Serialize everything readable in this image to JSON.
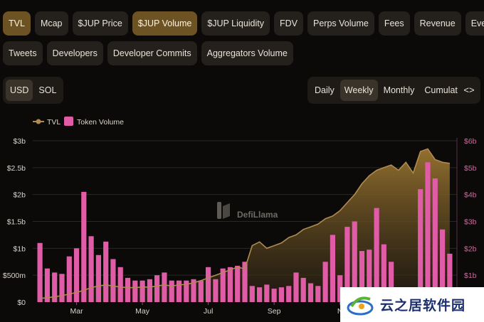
{
  "tabs_row1": [
    {
      "label": "TVL",
      "active": true
    },
    {
      "label": "Mcap",
      "active": false
    },
    {
      "label": "$JUP Price",
      "active": false
    },
    {
      "label": "$JUP Volume",
      "active": true
    },
    {
      "label": "$JUP Liquidity",
      "active": false
    },
    {
      "label": "FDV",
      "active": false
    },
    {
      "label": "Perps Volume",
      "active": false
    },
    {
      "label": "Fees",
      "active": false
    },
    {
      "label": "Revenue",
      "active": false
    },
    {
      "label": "Events",
      "active": false
    }
  ],
  "tabs_row2": [
    {
      "label": "Tweets",
      "active": false
    },
    {
      "label": "Developers",
      "active": false
    },
    {
      "label": "Developer Commits",
      "active": false
    },
    {
      "label": "Aggregators Volume",
      "active": false
    }
  ],
  "currency": {
    "options": [
      "USD",
      "SOL"
    ],
    "selected": "USD"
  },
  "granularity": {
    "options": [
      "Daily",
      "Weekly",
      "Monthly",
      "Cumulative"
    ],
    "selected": "Weekly"
  },
  "embed_button": {
    "label": "<>"
  },
  "watermark": "DefiLlama",
  "brand": {
    "text": "云之居软件园"
  },
  "colors": {
    "tvl": "#b08a52",
    "volume": "#e05ca6",
    "active_tab": "#6d5224"
  },
  "chart_data": {
    "type": "bar",
    "legend": [
      "TVL",
      "Token Volume"
    ],
    "x_tick_labels": [
      "Mar",
      "May",
      "Jul",
      "Sep",
      "N"
    ],
    "x_tick_index": [
      5,
      14,
      23,
      32,
      41
    ],
    "y_left": {
      "ticks": [
        "$0",
        "$500m",
        "$1b",
        "$1.5b",
        "$2b",
        "$2.5b",
        "$3b"
      ],
      "ylim": [
        0,
        3000000000
      ]
    },
    "y_right": {
      "ticks": [
        "$1b",
        "$2b",
        "$3b",
        "$4b",
        "$5b",
        "$6b"
      ],
      "ylim": [
        0,
        6000000000
      ]
    },
    "series": [
      {
        "name": "Token Volume",
        "type": "bar",
        "axis": "right",
        "values": [
          2.2,
          1.25,
          1.1,
          1.05,
          1.7,
          2.0,
          4.1,
          2.45,
          1.75,
          2.25,
          1.6,
          1.3,
          0.9,
          0.8,
          0.8,
          0.85,
          1.0,
          1.1,
          0.8,
          0.8,
          0.8,
          0.85,
          0.8,
          1.3,
          0.85,
          1.25,
          1.3,
          1.35,
          1.5,
          0.6,
          0.55,
          0.65,
          0.5,
          0.55,
          0.6,
          1.1,
          0.9,
          0.7,
          0.6,
          1.5,
          2.5,
          1.0,
          2.8,
          3.0,
          1.9,
          1.95,
          3.5,
          2.15,
          1.5,
          0.4,
          0.4,
          0.45,
          4.2,
          5.2,
          4.6,
          2.7,
          1.8
        ]
      },
      {
        "name": "TVL",
        "type": "area",
        "axis": "left",
        "values": [
          0.07,
          0.08,
          0.1,
          0.12,
          0.15,
          0.18,
          0.22,
          0.27,
          0.3,
          0.32,
          0.3,
          0.28,
          0.27,
          0.27,
          0.28,
          0.28,
          0.3,
          0.32,
          0.3,
          0.32,
          0.33,
          0.36,
          0.4,
          0.45,
          0.5,
          0.55,
          0.6,
          0.65,
          0.62,
          1.05,
          1.12,
          1.0,
          1.05,
          1.1,
          1.2,
          1.25,
          1.35,
          1.4,
          1.45,
          1.55,
          1.6,
          1.7,
          1.85,
          2.0,
          2.2,
          2.35,
          2.45,
          2.5,
          2.55,
          2.45,
          2.6,
          2.4,
          2.8,
          2.85,
          2.65,
          2.6,
          2.58
        ]
      }
    ]
  }
}
